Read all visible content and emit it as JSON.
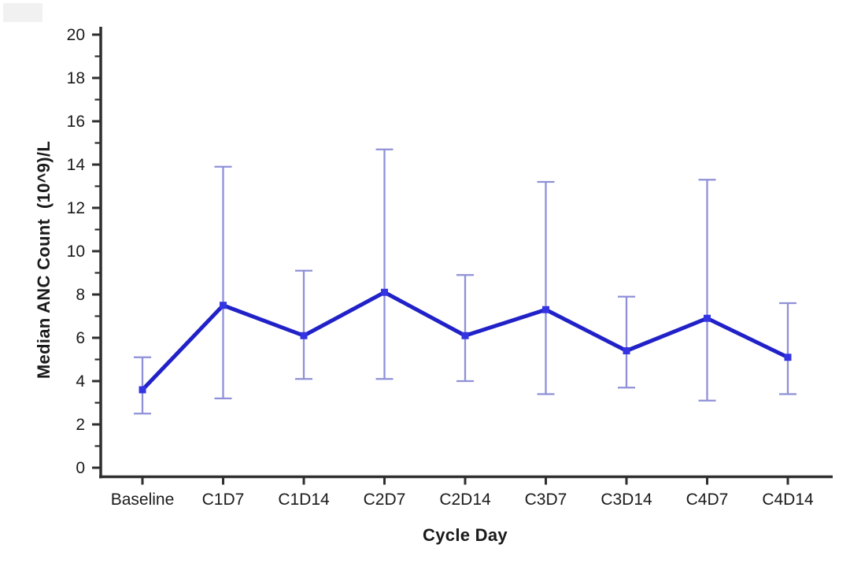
{
  "chart_data": {
    "type": "line",
    "title": "",
    "xlabel": "Cycle Day",
    "ylabel": "Median ANC Count  (10^9)/L",
    "categories": [
      "Baseline",
      "C1D7",
      "C1D14",
      "C2D7",
      "C2D14",
      "C3D7",
      "C3D14",
      "C4D7",
      "C4D14"
    ],
    "series": [
      {
        "name": "Median ANC Count",
        "values": [
          3.6,
          7.5,
          6.1,
          8.1,
          6.1,
          7.3,
          5.4,
          6.9,
          5.1
        ],
        "error_low": [
          2.5,
          3.2,
          4.1,
          4.1,
          4.0,
          3.4,
          3.7,
          3.1,
          3.4
        ],
        "error_high": [
          5.1,
          13.9,
          9.1,
          14.7,
          8.9,
          13.2,
          7.9,
          13.3,
          7.6
        ]
      }
    ],
    "ylim": [
      0,
      20
    ],
    "ytick_major_step": 2,
    "ytick_minor_step": 1,
    "ytick_labels": [
      "0",
      "2",
      "4",
      "6",
      "8",
      "10",
      "12",
      "14",
      "16",
      "18",
      "20"
    ],
    "grid": false,
    "legend_position": "none",
    "colors": {
      "line": "#2121c8",
      "marker": "#3434e2",
      "error_bar": "#8f90d8",
      "axis": "#2e2e2e",
      "text": "#1a1a1a"
    }
  }
}
